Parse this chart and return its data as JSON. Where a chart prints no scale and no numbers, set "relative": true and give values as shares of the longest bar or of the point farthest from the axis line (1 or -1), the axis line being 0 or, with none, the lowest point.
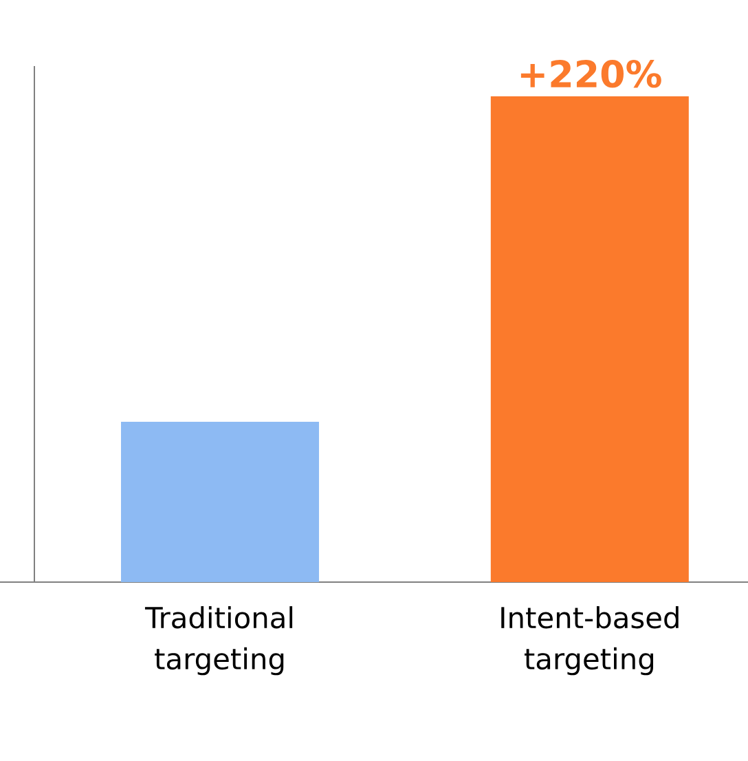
{
  "chart_data": {
    "type": "bar",
    "relative": true,
    "categories": [
      "Traditional targeting",
      "Intent-based targeting"
    ],
    "values": [
      0.33,
      1
    ],
    "colors": [
      "#8dbaf3",
      "#fb7a2c"
    ],
    "annotations": [
      {
        "text": "+220%",
        "x": "Intent-based targeting",
        "y": 1
      }
    ]
  }
}
